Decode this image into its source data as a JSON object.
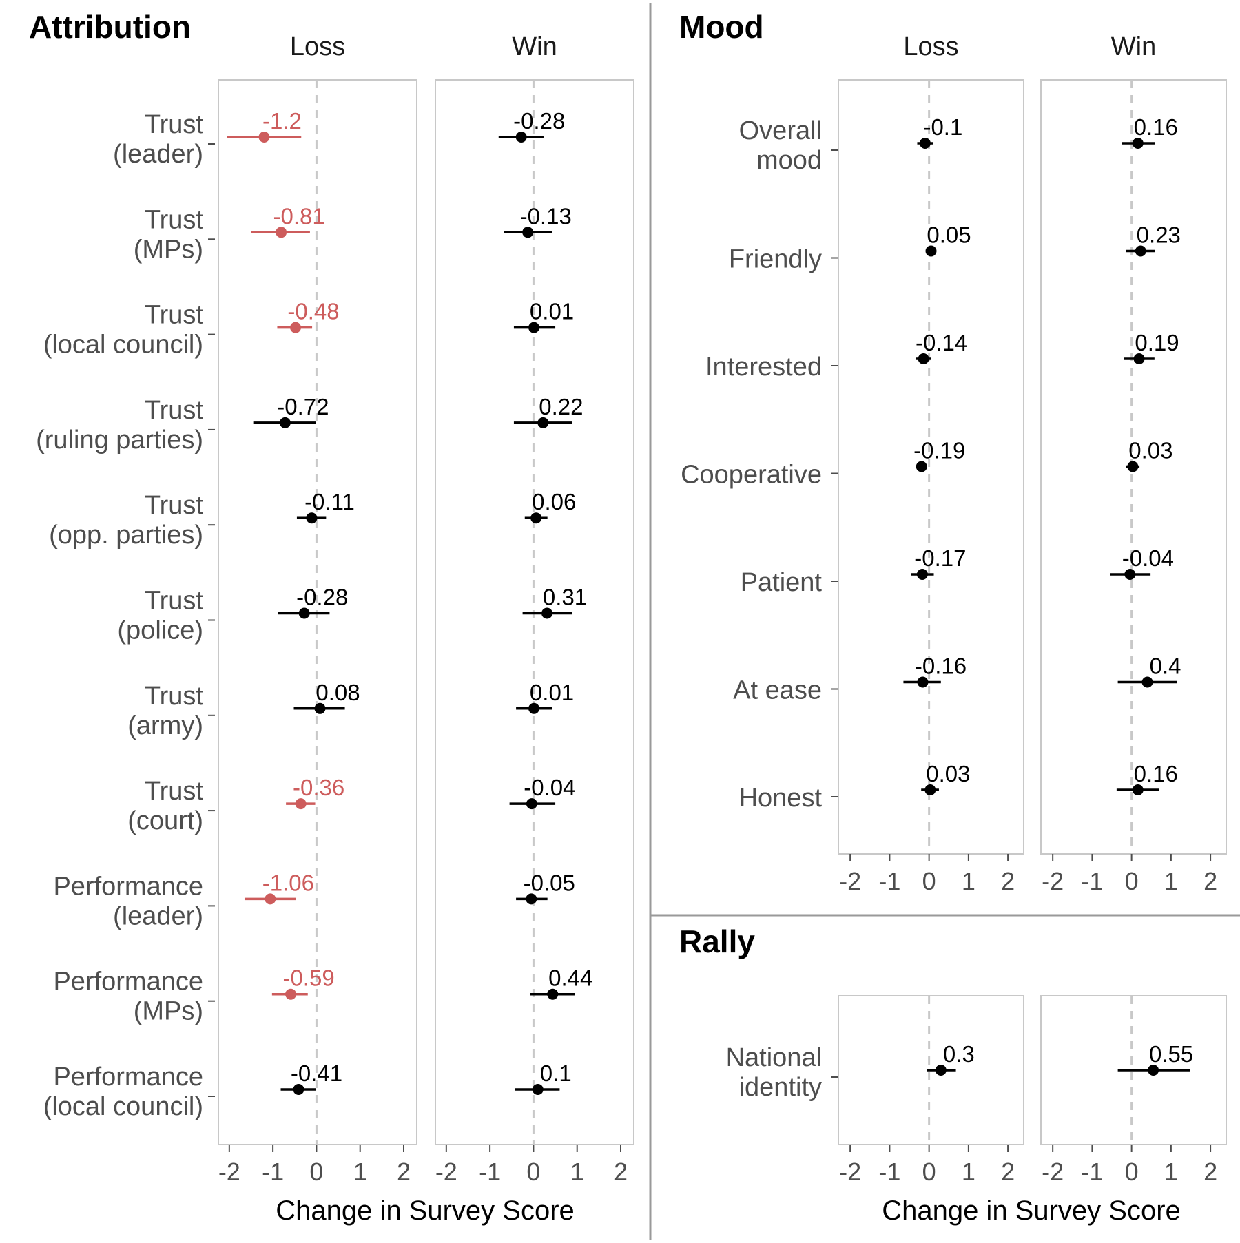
{
  "colors": {
    "significant": "#CD5C5C",
    "default": "#000000",
    "zero_line": "#c8c8c8",
    "panel_border": "#c8c8c8",
    "separator": "#999999"
  },
  "chart_data": [
    {
      "type": "dot-and-whisker",
      "title": "Attribution",
      "xlabel": "Change in Survey Score",
      "xlim": [
        -2.25,
        2.3
      ],
      "xticks": [
        -2,
        -1,
        0,
        1,
        2
      ],
      "tick_labels": [
        "-2",
        "-1",
        "0",
        "1",
        "2"
      ],
      "panels": [
        "Loss",
        "Win"
      ],
      "categories": [
        {
          "line1": "Trust",
          "line2": "(leader)"
        },
        {
          "line1": "Trust",
          "line2": "(MPs)"
        },
        {
          "line1": "Trust",
          "line2": "(local council)"
        },
        {
          "line1": "Trust",
          "line2": "(ruling parties)"
        },
        {
          "line1": "Trust",
          "line2": "(opp. parties)"
        },
        {
          "line1": "Trust",
          "line2": "(police)"
        },
        {
          "line1": "Trust",
          "line2": "(army)"
        },
        {
          "line1": "Trust",
          "line2": "(court)"
        },
        {
          "line1": "Performance",
          "line2": "(leader)"
        },
        {
          "line1": "Performance",
          "line2": "(MPs)"
        },
        {
          "line1": "Performance",
          "line2": "(local council)"
        }
      ],
      "series": [
        {
          "panel": "Loss",
          "points": [
            {
              "value": -1.2,
              "label": "-1.2",
              "low": -2.05,
              "high": -0.35,
              "significant": true
            },
            {
              "value": -0.81,
              "label": "-0.81",
              "low": -1.5,
              "high": -0.15,
              "significant": true
            },
            {
              "value": -0.48,
              "label": "-0.48",
              "low": -0.9,
              "high": -0.1,
              "significant": true
            },
            {
              "value": -0.72,
              "label": "-0.72",
              "low": -1.45,
              "high": -0.02,
              "significant": false
            },
            {
              "value": -0.11,
              "label": "-0.11",
              "low": -0.45,
              "high": 0.22,
              "significant": false
            },
            {
              "value": -0.28,
              "label": "-0.28",
              "low": -0.88,
              "high": 0.3,
              "significant": false
            },
            {
              "value": 0.08,
              "label": "0.08",
              "low": -0.52,
              "high": 0.65,
              "significant": false
            },
            {
              "value": -0.36,
              "label": "-0.36",
              "low": -0.7,
              "high": -0.03,
              "significant": true
            },
            {
              "value": -1.06,
              "label": "-1.06",
              "low": -1.65,
              "high": -0.48,
              "significant": true
            },
            {
              "value": -0.59,
              "label": "-0.59",
              "low": -1.02,
              "high": -0.2,
              "significant": true
            },
            {
              "value": -0.41,
              "label": "-0.41",
              "low": -0.82,
              "high": -0.02,
              "significant": false
            }
          ]
        },
        {
          "panel": "Win",
          "points": [
            {
              "value": -0.28,
              "label": "-0.28",
              "low": -0.8,
              "high": 0.23,
              "significant": false
            },
            {
              "value": -0.13,
              "label": "-0.13",
              "low": -0.68,
              "high": 0.42,
              "significant": false
            },
            {
              "value": 0.01,
              "label": "0.01",
              "low": -0.45,
              "high": 0.5,
              "significant": false
            },
            {
              "value": 0.22,
              "label": "0.22",
              "low": -0.45,
              "high": 0.88,
              "significant": false
            },
            {
              "value": 0.06,
              "label": "0.06",
              "low": -0.2,
              "high": 0.32,
              "significant": false
            },
            {
              "value": 0.31,
              "label": "0.31",
              "low": -0.25,
              "high": 0.88,
              "significant": false
            },
            {
              "value": 0.01,
              "label": "0.01",
              "low": -0.4,
              "high": 0.42,
              "significant": false
            },
            {
              "value": -0.04,
              "label": "-0.04",
              "low": -0.55,
              "high": 0.5,
              "significant": false
            },
            {
              "value": -0.05,
              "label": "-0.05",
              "low": -0.4,
              "high": 0.32,
              "significant": false
            },
            {
              "value": 0.44,
              "label": "0.44",
              "low": -0.08,
              "high": 0.95,
              "significant": false
            },
            {
              "value": 0.1,
              "label": "0.1",
              "low": -0.42,
              "high": 0.6,
              "significant": false
            }
          ]
        }
      ]
    },
    {
      "type": "dot-and-whisker",
      "title": "Mood",
      "xlabel": "",
      "xlim": [
        -2.3,
        2.4
      ],
      "xticks": [
        -2,
        -1,
        0,
        1,
        2
      ],
      "tick_labels": [
        "-2",
        "-1",
        "0",
        "1",
        "2"
      ],
      "panels": [
        "Loss",
        "Win"
      ],
      "categories": [
        {
          "line1": "Overall",
          "line2": "mood"
        },
        {
          "line1": "Friendly",
          "line2": ""
        },
        {
          "line1": "Interested",
          "line2": ""
        },
        {
          "line1": "Cooperative",
          "line2": ""
        },
        {
          "line1": "Patient",
          "line2": ""
        },
        {
          "line1": "At ease",
          "line2": ""
        },
        {
          "line1": "Honest",
          "line2": ""
        }
      ],
      "series": [
        {
          "panel": "Loss",
          "points": [
            {
              "value": -0.1,
              "label": "-0.1",
              "low": -0.3,
              "high": 0.1,
              "significant": false
            },
            {
              "value": 0.05,
              "label": "0.05",
              "low": -0.05,
              "high": 0.15,
              "significant": false
            },
            {
              "value": -0.14,
              "label": "-0.14",
              "low": -0.33,
              "high": 0.05,
              "significant": false
            },
            {
              "value": -0.19,
              "label": "-0.19",
              "low": -0.32,
              "high": -0.05,
              "significant": false
            },
            {
              "value": -0.17,
              "label": "-0.17",
              "low": -0.45,
              "high": 0.12,
              "significant": false
            },
            {
              "value": -0.16,
              "label": "-0.16",
              "low": -0.65,
              "high": 0.3,
              "significant": false
            },
            {
              "value": 0.03,
              "label": "0.03",
              "low": -0.2,
              "high": 0.25,
              "significant": false
            }
          ]
        },
        {
          "panel": "Win",
          "points": [
            {
              "value": 0.16,
              "label": "0.16",
              "low": -0.25,
              "high": 0.6,
              "significant": false
            },
            {
              "value": 0.23,
              "label": "0.23",
              "low": -0.15,
              "high": 0.6,
              "significant": false
            },
            {
              "value": 0.19,
              "label": "0.19",
              "low": -0.2,
              "high": 0.58,
              "significant": false
            },
            {
              "value": 0.03,
              "label": "0.03",
              "low": -0.15,
              "high": 0.2,
              "significant": false
            },
            {
              "value": -0.04,
              "label": "-0.04",
              "low": -0.55,
              "high": 0.48,
              "significant": false
            },
            {
              "value": 0.4,
              "label": "0.4",
              "low": -0.35,
              "high": 1.15,
              "significant": false
            },
            {
              "value": 0.16,
              "label": "0.16",
              "low": -0.38,
              "high": 0.7,
              "significant": false
            }
          ]
        }
      ]
    },
    {
      "type": "dot-and-whisker",
      "title": "Rally",
      "xlabel": "Change in Survey Score",
      "xlim": [
        -2.3,
        2.4
      ],
      "xticks": [
        -2,
        -1,
        0,
        1,
        2
      ],
      "tick_labels": [
        "-2",
        "-1",
        "0",
        "1",
        "2"
      ],
      "panels": [
        "",
        ""
      ],
      "categories": [
        {
          "line1": "National",
          "line2": "identity"
        }
      ],
      "series": [
        {
          "panel": "Loss",
          "points": [
            {
              "value": 0.3,
              "label": "0.3",
              "low": -0.05,
              "high": 0.68,
              "significant": false
            }
          ]
        },
        {
          "panel": "Win",
          "points": [
            {
              "value": 0.55,
              "label": "0.55",
              "low": -0.35,
              "high": 1.48,
              "significant": false
            }
          ]
        }
      ]
    }
  ]
}
